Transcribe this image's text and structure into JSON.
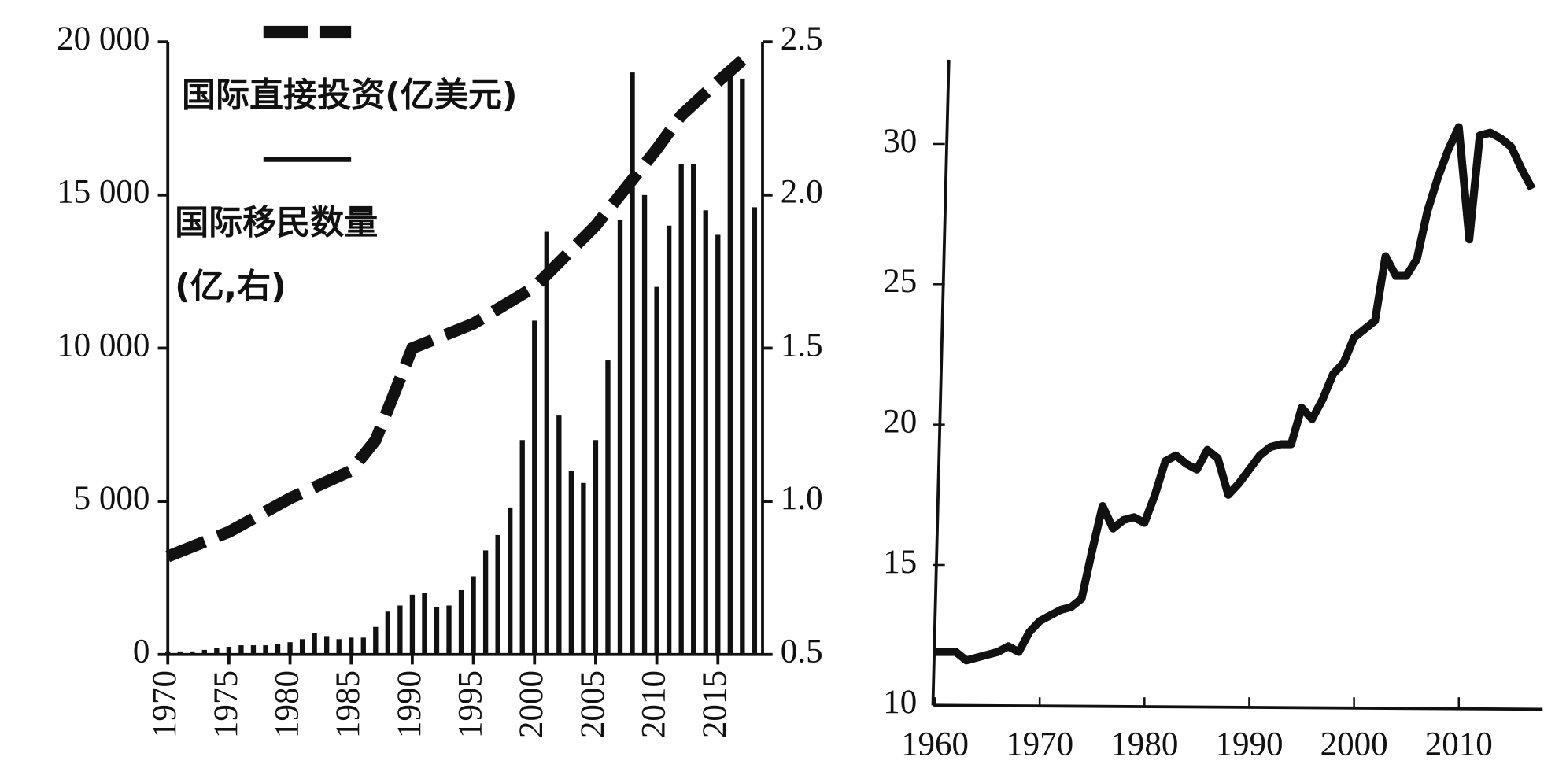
{
  "chart_data": [
    {
      "type": "bar",
      "categories": [
        1970,
        1971,
        1972,
        1973,
        1974,
        1975,
        1976,
        1977,
        1978,
        1979,
        1980,
        1981,
        1982,
        1983,
        1984,
        1985,
        1986,
        1987,
        1988,
        1989,
        1990,
        1991,
        1992,
        1993,
        1994,
        1995,
        1996,
        1997,
        1998,
        1999,
        2000,
        2001,
        2002,
        2003,
        2004,
        2005,
        2006,
        2007,
        2008,
        2009,
        2010,
        2011,
        2012,
        2013,
        2014,
        2015,
        2016,
        2017,
        2018
      ],
      "xlim": [
        1970,
        2018
      ],
      "xticks": [
        1970,
        1975,
        1980,
        1985,
        1990,
        1995,
        2000,
        2005,
        2010,
        2015
      ],
      "ylim": [
        0,
        20000
      ],
      "yticks": [
        0,
        {
          "value": 5000,
          "label": "5 000"
        },
        {
          "value": 10000,
          "label": "10 000"
        },
        {
          "value": 15000,
          "label": "15 000"
        },
        {
          "value": 20000,
          "label": "20 000"
        }
      ],
      "y2lim": [
        0.5,
        2.5
      ],
      "y2ticks": [
        0.5,
        {
          "value": 1,
          "label": "1.0"
        },
        1.5,
        {
          "value": 2,
          "label": "2.0"
        },
        2.5
      ],
      "series": [
        {
          "name": "国际直接投资(亿美元)",
          "type": "line",
          "dashed": true,
          "axis": "y2",
          "color": "#111111",
          "x": [
            1970,
            1975,
            1980,
            1985,
            1987,
            1990,
            1995,
            2000,
            2005,
            2008,
            2010,
            2012,
            2015,
            2017
          ],
          "values": [
            0.82,
            0.9,
            1.01,
            1.1,
            1.2,
            1.5,
            1.58,
            1.7,
            1.9,
            2.05,
            2.15,
            2.26,
            2.37,
            2.44
          ]
        },
        {
          "name": "国际移民数量",
          "name_note": "(亿,右)",
          "type": "bar",
          "color": "#111111",
          "values": [
            100,
            100,
            100,
            150,
            200,
            250,
            300,
            300,
            300,
            350,
            400,
            500,
            700,
            600,
            500,
            550,
            550,
            900,
            1400,
            1600,
            1950,
            2000,
            1550,
            1600,
            2100,
            2550,
            3400,
            3900,
            4800,
            7000,
            10900,
            13800,
            7800,
            6000,
            5600,
            7000,
            9600,
            14200,
            19000,
            15000,
            12000,
            14000,
            16000,
            16000,
            14500,
            13700,
            18900,
            18800,
            14600
          ]
        }
      ]
    },
    {
      "type": "line",
      "x": [
        1960,
        1961,
        1962,
        1963,
        1964,
        1965,
        1966,
        1967,
        1968,
        1969,
        1970,
        1971,
        1972,
        1973,
        1974,
        1975,
        1976,
        1977,
        1978,
        1979,
        1980,
        1981,
        1982,
        1983,
        1984,
        1985,
        1986,
        1987,
        1988,
        1989,
        1990,
        1991,
        1992,
        1993,
        1994,
        1995,
        1996,
        1997,
        1998,
        1999,
        2000,
        2001,
        2002,
        2003,
        2004,
        2005,
        2006,
        2007,
        2008,
        2009,
        2010,
        2011,
        2012,
        2013,
        2014,
        2015,
        2016,
        2017
      ],
      "values": [
        11.9,
        11.9,
        11.9,
        11.6,
        11.7,
        11.8,
        11.9,
        12.1,
        11.9,
        12.6,
        13.0,
        13.2,
        13.4,
        13.5,
        13.8,
        15.5,
        17.1,
        16.3,
        16.6,
        16.7,
        16.5,
        17.5,
        18.7,
        18.9,
        18.6,
        18.4,
        19.1,
        18.8,
        17.5,
        17.9,
        18.4,
        18.9,
        19.2,
        19.3,
        19.3,
        20.6,
        20.2,
        20.9,
        21.8,
        22.2,
        23.1,
        23.4,
        23.7,
        26.0,
        25.3,
        25.3,
        25.9,
        27.6,
        28.8,
        29.8,
        30.6,
        26.6,
        30.3,
        30.4,
        30.2,
        29.9,
        29.1,
        28.4
      ],
      "color": "#111111",
      "xlim": [
        1960,
        2018
      ],
      "xticks": [
        1960,
        1970,
        1980,
        1990,
        2000,
        2010
      ],
      "ylim": [
        10,
        33
      ],
      "yticks": [
        10,
        15,
        20,
        25,
        30
      ]
    }
  ]
}
